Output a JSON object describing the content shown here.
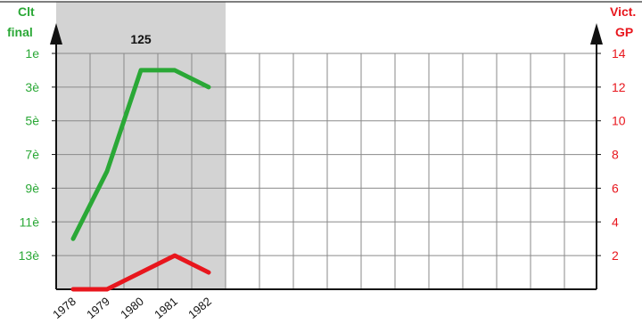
{
  "chart_data": {
    "type": "line",
    "x": [
      "1978",
      "1979",
      "1980",
      "1981",
      "1982"
    ],
    "y_left": {
      "title_line1": "Clt",
      "title_line2": "final",
      "ticks": [
        "1e",
        "3è",
        "5è",
        "7è",
        "9è",
        "11è",
        "13è"
      ],
      "tick_values": [
        1,
        3,
        5,
        7,
        9,
        11,
        13
      ],
      "range": [
        1,
        15
      ],
      "inverted": true,
      "color": "#2aa836"
    },
    "y_right": {
      "title_line1": "Vict.",
      "title_line2": "GP",
      "ticks": [
        "14",
        "12",
        "10",
        "8",
        "6",
        "4",
        "2"
      ],
      "tick_values": [
        14,
        12,
        10,
        8,
        6,
        4,
        2
      ],
      "range": [
        0,
        14
      ],
      "color": "#e8161d"
    },
    "band": {
      "label": "125",
      "from_index": 0,
      "to_index": 4
    },
    "series": [
      {
        "axis": "left",
        "color": "#2aa836",
        "values": [
          12,
          8,
          2,
          2,
          3
        ]
      },
      {
        "axis": "right",
        "color": "#e8161d",
        "values": [
          0,
          0,
          1,
          2,
          1
        ]
      }
    ],
    "grid": true,
    "slots": 16
  }
}
